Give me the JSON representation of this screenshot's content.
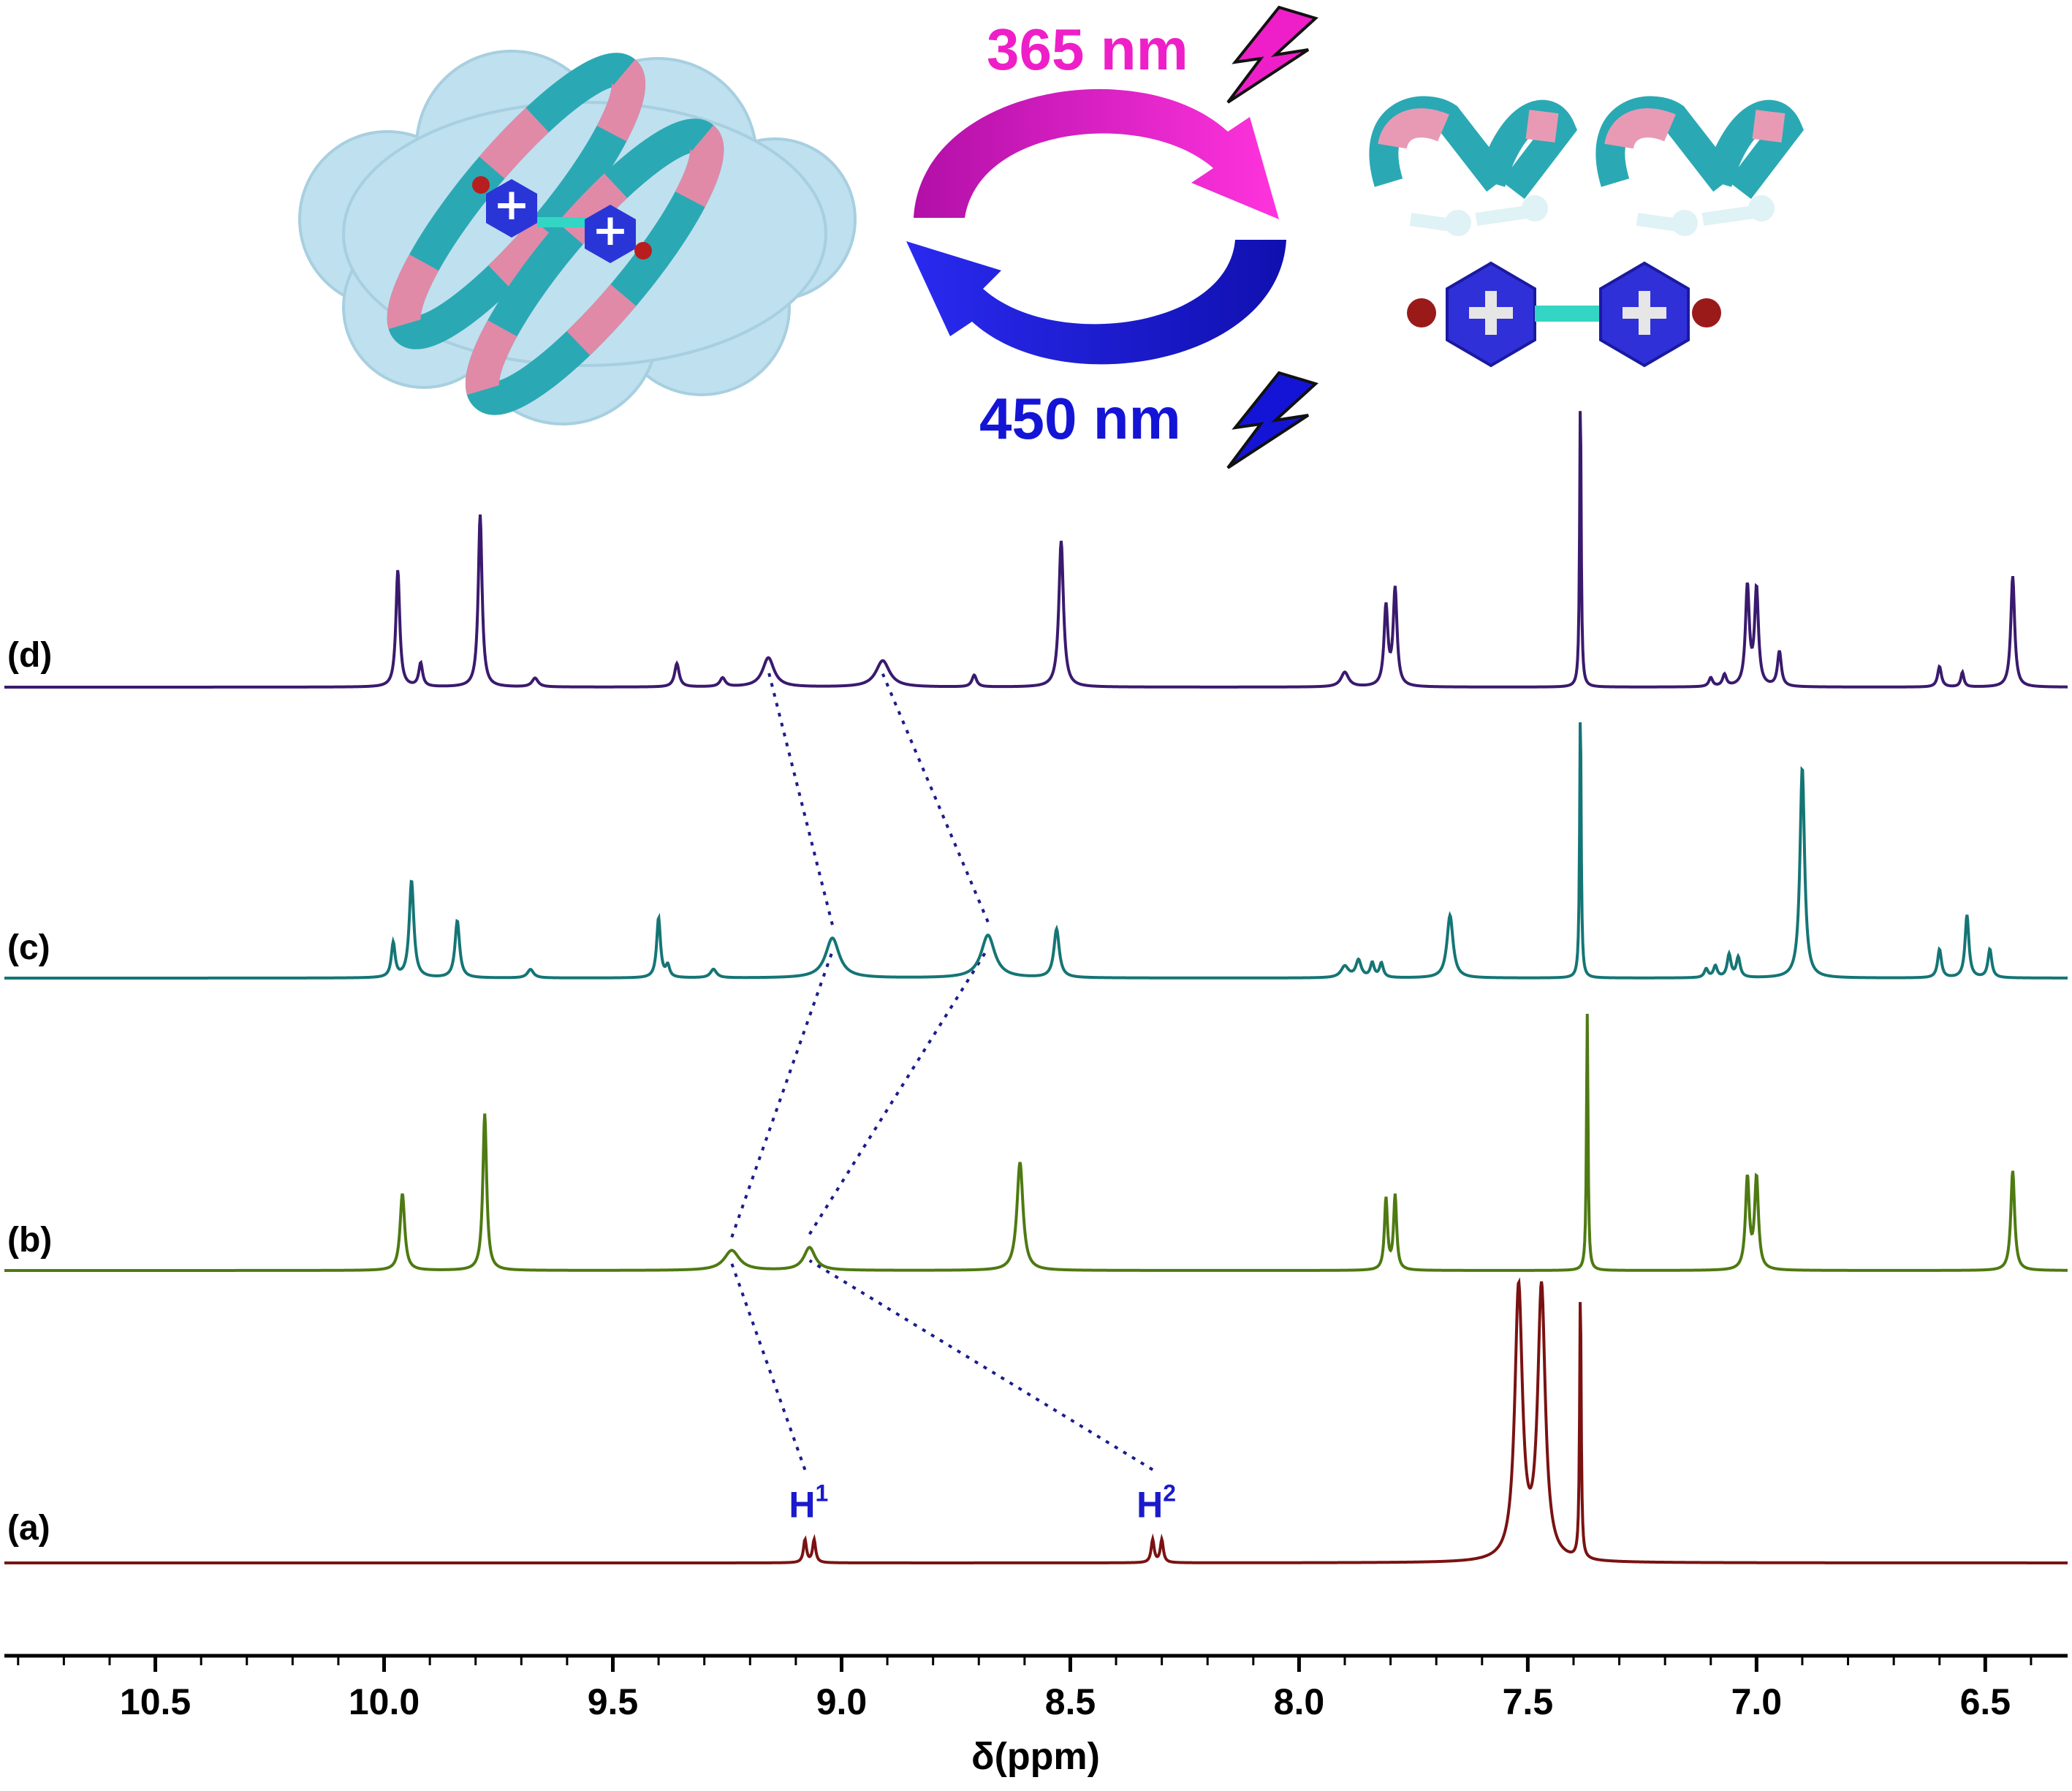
{
  "scheme": {
    "wavelength_top": "365 nm",
    "wavelength_bottom": "450 nm",
    "color_top": "#ee1fc8",
    "color_bottom": "#1414d6"
  },
  "chart_data": {
    "type": "line",
    "xlabel": "δ(ppm)",
    "xlim": [
      10.83,
      6.32
    ],
    "reversed_x": true,
    "xticks": [
      "10.5",
      "10.0",
      "9.5",
      "9.0",
      "8.5",
      "8.0",
      "7.5",
      "7.0",
      "6.5"
    ],
    "grid": false,
    "legend": "none",
    "series": [
      {
        "label": "(a)",
        "color": "#7a1212",
        "peaks": [
          {
            "x": 9.08,
            "h": 0.08,
            "w": 0.004
          },
          {
            "x": 9.06,
            "h": 0.08,
            "w": 0.004
          },
          {
            "x": 8.32,
            "h": 0.08,
            "w": 0.004
          },
          {
            "x": 8.3,
            "h": 0.08,
            "w": 0.004
          },
          {
            "x": 7.52,
            "h": 0.95,
            "w": 0.01
          },
          {
            "x": 7.47,
            "h": 0.95,
            "w": 0.01
          },
          {
            "x": 7.385,
            "h": 0.95,
            "w": 0.002
          }
        ]
      },
      {
        "label": "(b)",
        "color": "#4e7a12",
        "peaks": [
          {
            "x": 9.96,
            "h": 0.27,
            "w": 0.006
          },
          {
            "x": 9.78,
            "h": 0.55,
            "w": 0.005
          },
          {
            "x": 9.24,
            "h": 0.07,
            "w": 0.02
          },
          {
            "x": 9.07,
            "h": 0.08,
            "w": 0.015
          },
          {
            "x": 8.61,
            "h": 0.38,
            "w": 0.008
          },
          {
            "x": 7.81,
            "h": 0.25,
            "w": 0.004
          },
          {
            "x": 7.79,
            "h": 0.26,
            "w": 0.004
          },
          {
            "x": 7.37,
            "h": 0.9,
            "w": 0.002
          },
          {
            "x": 7.02,
            "h": 0.32,
            "w": 0.005
          },
          {
            "x": 7.0,
            "h": 0.32,
            "w": 0.005
          },
          {
            "x": 6.44,
            "h": 0.35,
            "w": 0.005
          }
        ]
      },
      {
        "label": "(c)",
        "color": "#157575",
        "peaks": [
          {
            "x": 9.98,
            "h": 0.12,
            "w": 0.005
          },
          {
            "x": 9.94,
            "h": 0.34,
            "w": 0.006
          },
          {
            "x": 9.84,
            "h": 0.2,
            "w": 0.006
          },
          {
            "x": 9.68,
            "h": 0.03,
            "w": 0.008
          },
          {
            "x": 9.4,
            "h": 0.21,
            "w": 0.005
          },
          {
            "x": 9.38,
            "h": 0.04,
            "w": 0.005
          },
          {
            "x": 9.28,
            "h": 0.03,
            "w": 0.008
          },
          {
            "x": 9.02,
            "h": 0.14,
            "w": 0.018
          },
          {
            "x": 8.68,
            "h": 0.15,
            "w": 0.018
          },
          {
            "x": 8.53,
            "h": 0.17,
            "w": 0.007
          },
          {
            "x": 7.9,
            "h": 0.04,
            "w": 0.01
          },
          {
            "x": 7.87,
            "h": 0.06,
            "w": 0.007
          },
          {
            "x": 7.84,
            "h": 0.05,
            "w": 0.005
          },
          {
            "x": 7.82,
            "h": 0.05,
            "w": 0.005
          },
          {
            "x": 7.67,
            "h": 0.22,
            "w": 0.008
          },
          {
            "x": 7.385,
            "h": 0.95,
            "w": 0.002
          },
          {
            "x": 7.11,
            "h": 0.03,
            "w": 0.005
          },
          {
            "x": 7.09,
            "h": 0.04,
            "w": 0.005
          },
          {
            "x": 7.06,
            "h": 0.08,
            "w": 0.005
          },
          {
            "x": 7.04,
            "h": 0.07,
            "w": 0.005
          },
          {
            "x": 6.9,
            "h": 0.74,
            "w": 0.006
          },
          {
            "x": 6.6,
            "h": 0.1,
            "w": 0.005
          },
          {
            "x": 6.54,
            "h": 0.22,
            "w": 0.005
          },
          {
            "x": 6.49,
            "h": 0.1,
            "w": 0.005
          }
        ]
      },
      {
        "label": "(d)",
        "color": "#3a1a6e",
        "peaks": [
          {
            "x": 9.97,
            "h": 0.4,
            "w": 0.005
          },
          {
            "x": 9.92,
            "h": 0.08,
            "w": 0.005
          },
          {
            "x": 9.79,
            "h": 0.59,
            "w": 0.005
          },
          {
            "x": 9.67,
            "h": 0.03,
            "w": 0.008
          },
          {
            "x": 9.36,
            "h": 0.08,
            "w": 0.006
          },
          {
            "x": 9.26,
            "h": 0.03,
            "w": 0.007
          },
          {
            "x": 9.16,
            "h": 0.1,
            "w": 0.015
          },
          {
            "x": 8.91,
            "h": 0.09,
            "w": 0.018
          },
          {
            "x": 8.71,
            "h": 0.04,
            "w": 0.006
          },
          {
            "x": 8.52,
            "h": 0.5,
            "w": 0.006
          },
          {
            "x": 7.9,
            "h": 0.05,
            "w": 0.01
          },
          {
            "x": 7.81,
            "h": 0.27,
            "w": 0.005
          },
          {
            "x": 7.79,
            "h": 0.33,
            "w": 0.005
          },
          {
            "x": 7.385,
            "h": 1.0,
            "w": 0.002
          },
          {
            "x": 7.1,
            "h": 0.03,
            "w": 0.005
          },
          {
            "x": 7.07,
            "h": 0.04,
            "w": 0.005
          },
          {
            "x": 7.02,
            "h": 0.34,
            "w": 0.005
          },
          {
            "x": 7.0,
            "h": 0.33,
            "w": 0.005
          },
          {
            "x": 6.95,
            "h": 0.12,
            "w": 0.005
          },
          {
            "x": 6.6,
            "h": 0.07,
            "w": 0.005
          },
          {
            "x": 6.55,
            "h": 0.05,
            "w": 0.004
          },
          {
            "x": 6.44,
            "h": 0.38,
            "w": 0.005
          }
        ]
      }
    ],
    "annotations": [
      {
        "label": "H",
        "sup": "1",
        "x": 9.08,
        "series": "(a)"
      },
      {
        "label": "H",
        "sup": "2",
        "x": 8.32,
        "series": "(a)"
      }
    ],
    "correlation_lines": [
      {
        "from": [
          "(a)",
          9.08
        ],
        "to": [
          "(b)",
          9.24
        ]
      },
      {
        "from": [
          "(b)",
          9.24
        ],
        "to": [
          "(c)",
          9.02
        ]
      },
      {
        "from": [
          "(c)",
          9.02
        ],
        "to": [
          "(d)",
          9.16
        ]
      },
      {
        "from": [
          "(a)",
          8.32
        ],
        "to": [
          "(b)",
          9.07
        ]
      },
      {
        "from": [
          "(b)",
          9.07
        ],
        "to": [
          "(c)",
          8.68
        ]
      },
      {
        "from": [
          "(c)",
          8.68
        ],
        "to": [
          "(d)",
          8.91
        ]
      }
    ]
  }
}
